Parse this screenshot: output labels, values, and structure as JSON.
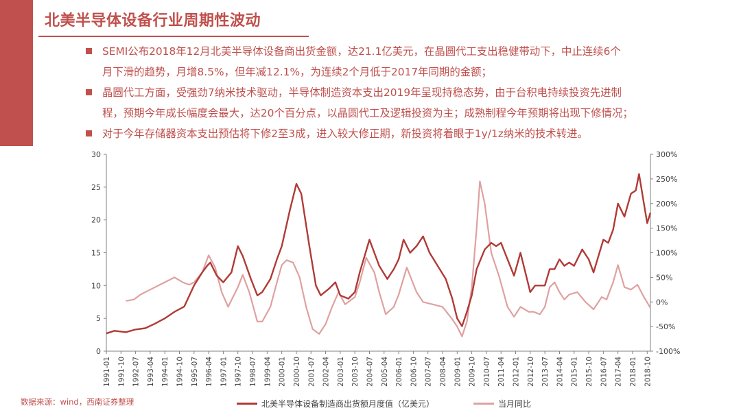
{
  "page": {
    "title": "北美半导体设备行业周期性波动",
    "bullets": [
      "SEMI公布2018年12月北美半导体设备商出货金额，达21.1亿美元，在晶圆代工支出稳健带动下，中止连续6个\n月下滑的趋势，月增8.5%，但年减12.1%，为连续2个月低于2017年同期的金额；",
      "晶圆代工方面，受强劲7纳米技术驱动，半导体制造资本支出2019年呈现持稳态势，由于台积电持续投资先进制\n程，预期今年成长幅度会最大，达20个百分点，以晶圆代工及逻辑投资为主；成熟制程今年预期将出现下修情况；",
      "对于今年存储器资本支出预估将下修2至3成，进入较大修正期，新投资将着眼于1y/1z纳米的技术转进。"
    ],
    "source": "数据来源：wind，西南证券整理"
  },
  "colors": {
    "accent": "#c0504d",
    "series1": "#b03a36",
    "series2": "#e0a0a0"
  },
  "chart_data": {
    "type": "line",
    "x_ticks": [
      "1991-01",
      "1991-10",
      "1992-07",
      "1993-04",
      "1994-01",
      "1994-10",
      "1995-07",
      "1996-04",
      "1997-01",
      "1997-10",
      "1998-07",
      "1999-04",
      "2000-01",
      "2000-10",
      "2001-07",
      "2002-04",
      "2003-01",
      "2003-10",
      "2004-07",
      "2005-04",
      "2006-01",
      "2006-10",
      "2007-07",
      "2008-04",
      "2009-01",
      "2009-10",
      "2010-07",
      "2011-04",
      "2012-01",
      "2012-10",
      "2013-07",
      "2014-04",
      "2015-01",
      "2015-10",
      "2016-07",
      "2017-04",
      "2018-01",
      "2018-10"
    ],
    "y_left": {
      "min": 0,
      "max": 30,
      "ticks": [
        "0",
        "5",
        "10",
        "15",
        "20",
        "25",
        "30"
      ]
    },
    "y_right": {
      "min": -100,
      "max": 300,
      "ticks": [
        "-100%",
        "-50%",
        "0%",
        "50%",
        "100%",
        "150%",
        "200%",
        "250%",
        "300%"
      ]
    },
    "grid": false,
    "legend_position": "bottom",
    "series": [
      {
        "name": "北美半导体设备制造商出货额月度值（亿美元）",
        "axis": "left",
        "points": [
          [
            "1991-01",
            2.7
          ],
          [
            "1991-06",
            3.1
          ],
          [
            "1992-01",
            2.9
          ],
          [
            "1992-07",
            3.3
          ],
          [
            "1993-01",
            3.5
          ],
          [
            "1993-07",
            4.2
          ],
          [
            "1994-01",
            5.0
          ],
          [
            "1994-07",
            6.0
          ],
          [
            "1995-01",
            6.8
          ],
          [
            "1995-07",
            10.0
          ],
          [
            "1995-12",
            12.0
          ],
          [
            "1996-03",
            13.0
          ],
          [
            "1996-05",
            13.5
          ],
          [
            "1996-09",
            11.5
          ],
          [
            "1997-01",
            10.5
          ],
          [
            "1997-06",
            12.0
          ],
          [
            "1997-10",
            16.0
          ],
          [
            "1998-01",
            14.5
          ],
          [
            "1998-06",
            11.0
          ],
          [
            "1998-10",
            8.5
          ],
          [
            "1999-01",
            9.0
          ],
          [
            "1999-06",
            11.0
          ],
          [
            "1999-10",
            14.0
          ],
          [
            "2000-01",
            16.0
          ],
          [
            "2000-06",
            21.5
          ],
          [
            "2000-10",
            25.5
          ],
          [
            "2001-01",
            24.0
          ],
          [
            "2001-06",
            16.0
          ],
          [
            "2001-10",
            10.0
          ],
          [
            "2002-01",
            8.5
          ],
          [
            "2002-06",
            9.5
          ],
          [
            "2002-10",
            10.5
          ],
          [
            "2003-01",
            8.5
          ],
          [
            "2003-06",
            8.0
          ],
          [
            "2003-10",
            9.0
          ],
          [
            "2004-01",
            12.0
          ],
          [
            "2004-07",
            17.0
          ],
          [
            "2004-10",
            15.0
          ],
          [
            "2005-01",
            13.0
          ],
          [
            "2005-06",
            11.0
          ],
          [
            "2005-10",
            12.5
          ],
          [
            "2006-01",
            14.0
          ],
          [
            "2006-04",
            17.0
          ],
          [
            "2006-08",
            15.0
          ],
          [
            "2006-12",
            16.0
          ],
          [
            "2007-04",
            17.5
          ],
          [
            "2007-08",
            15.0
          ],
          [
            "2008-01",
            13.0
          ],
          [
            "2008-06",
            11.0
          ],
          [
            "2008-10",
            8.0
          ],
          [
            "2009-01",
            5.0
          ],
          [
            "2009-04",
            3.8
          ],
          [
            "2009-07",
            6.0
          ],
          [
            "2009-10",
            8.5
          ],
          [
            "2010-01",
            12.5
          ],
          [
            "2010-06",
            15.5
          ],
          [
            "2010-10",
            16.5
          ],
          [
            "2011-01",
            16.0
          ],
          [
            "2011-04",
            16.5
          ],
          [
            "2011-08",
            14.0
          ],
          [
            "2011-12",
            11.5
          ],
          [
            "2012-04",
            15.0
          ],
          [
            "2012-08",
            11.0
          ],
          [
            "2012-10",
            9.0
          ],
          [
            "2013-01",
            10.0
          ],
          [
            "2013-07",
            10.0
          ],
          [
            "2013-10",
            12.5
          ],
          [
            "2014-01",
            12.5
          ],
          [
            "2014-04",
            14.0
          ],
          [
            "2014-07",
            13.0
          ],
          [
            "2014-10",
            13.5
          ],
          [
            "2015-01",
            13.0
          ],
          [
            "2015-06",
            15.5
          ],
          [
            "2015-10",
            14.0
          ],
          [
            "2016-01",
            12.0
          ],
          [
            "2016-07",
            17.0
          ],
          [
            "2016-10",
            16.5
          ],
          [
            "2017-01",
            18.5
          ],
          [
            "2017-04",
            22.5
          ],
          [
            "2017-08",
            20.5
          ],
          [
            "2017-12",
            24.0
          ],
          [
            "2018-03",
            24.5
          ],
          [
            "2018-05",
            27.0
          ],
          [
            "2018-08",
            22.5
          ],
          [
            "2018-10",
            19.5
          ],
          [
            "2018-12",
            21.1
          ]
        ]
      },
      {
        "name": "当月同比",
        "axis": "right",
        "points": [
          [
            "1992-01",
            2
          ],
          [
            "1992-06",
            5
          ],
          [
            "1992-10",
            15
          ],
          [
            "1993-04",
            25
          ],
          [
            "1993-10",
            35
          ],
          [
            "1994-04",
            45
          ],
          [
            "1994-07",
            50
          ],
          [
            "1994-12",
            40
          ],
          [
            "1995-04",
            35
          ],
          [
            "1995-07",
            40
          ],
          [
            "1995-12",
            60
          ],
          [
            "1996-04",
            95
          ],
          [
            "1996-08",
            70
          ],
          [
            "1996-12",
            20
          ],
          [
            "1997-04",
            -10
          ],
          [
            "1997-10",
            30
          ],
          [
            "1998-01",
            55
          ],
          [
            "1998-05",
            20
          ],
          [
            "1998-10",
            -40
          ],
          [
            "1999-01",
            -40
          ],
          [
            "1999-06",
            -10
          ],
          [
            "1999-10",
            40
          ],
          [
            "2000-01",
            75
          ],
          [
            "2000-04",
            85
          ],
          [
            "2000-08",
            80
          ],
          [
            "2000-12",
            50
          ],
          [
            "2001-04",
            -10
          ],
          [
            "2001-08",
            -55
          ],
          [
            "2001-12",
            -65
          ],
          [
            "2002-04",
            -45
          ],
          [
            "2002-08",
            -10
          ],
          [
            "2002-12",
            20
          ],
          [
            "2003-04",
            -5
          ],
          [
            "2003-10",
            10
          ],
          [
            "2004-01",
            40
          ],
          [
            "2004-05",
            90
          ],
          [
            "2004-10",
            60
          ],
          [
            "2005-01",
            20
          ],
          [
            "2005-05",
            -25
          ],
          [
            "2005-10",
            -10
          ],
          [
            "2006-01",
            15
          ],
          [
            "2006-06",
            70
          ],
          [
            "2006-12",
            20
          ],
          [
            "2007-04",
            0
          ],
          [
            "2007-10",
            -5
          ],
          [
            "2008-04",
            -10
          ],
          [
            "2008-10",
            -35
          ],
          [
            "2009-01",
            -50
          ],
          [
            "2009-04",
            -70
          ],
          [
            "2009-07",
            -40
          ],
          [
            "2009-10",
            30
          ],
          [
            "2010-01",
            150
          ],
          [
            "2010-03",
            245
          ],
          [
            "2010-06",
            200
          ],
          [
            "2010-10",
            100
          ],
          [
            "2011-03",
            50
          ],
          [
            "2011-08",
            -10
          ],
          [
            "2011-12",
            -30
          ],
          [
            "2012-04",
            -10
          ],
          [
            "2012-09",
            -20
          ],
          [
            "2012-12",
            -20
          ],
          [
            "2013-04",
            -25
          ],
          [
            "2013-07",
            -10
          ],
          [
            "2013-10",
            30
          ],
          [
            "2014-01",
            40
          ],
          [
            "2014-04",
            20
          ],
          [
            "2014-07",
            5
          ],
          [
            "2014-10",
            15
          ],
          [
            "2015-03",
            20
          ],
          [
            "2015-08",
            0
          ],
          [
            "2016-01",
            -15
          ],
          [
            "2016-06",
            10
          ],
          [
            "2016-09",
            5
          ],
          [
            "2017-01",
            40
          ],
          [
            "2017-04",
            75
          ],
          [
            "2017-08",
            30
          ],
          [
            "2017-12",
            25
          ],
          [
            "2018-04",
            35
          ],
          [
            "2018-08",
            10
          ],
          [
            "2018-12",
            -12
          ]
        ]
      }
    ]
  }
}
